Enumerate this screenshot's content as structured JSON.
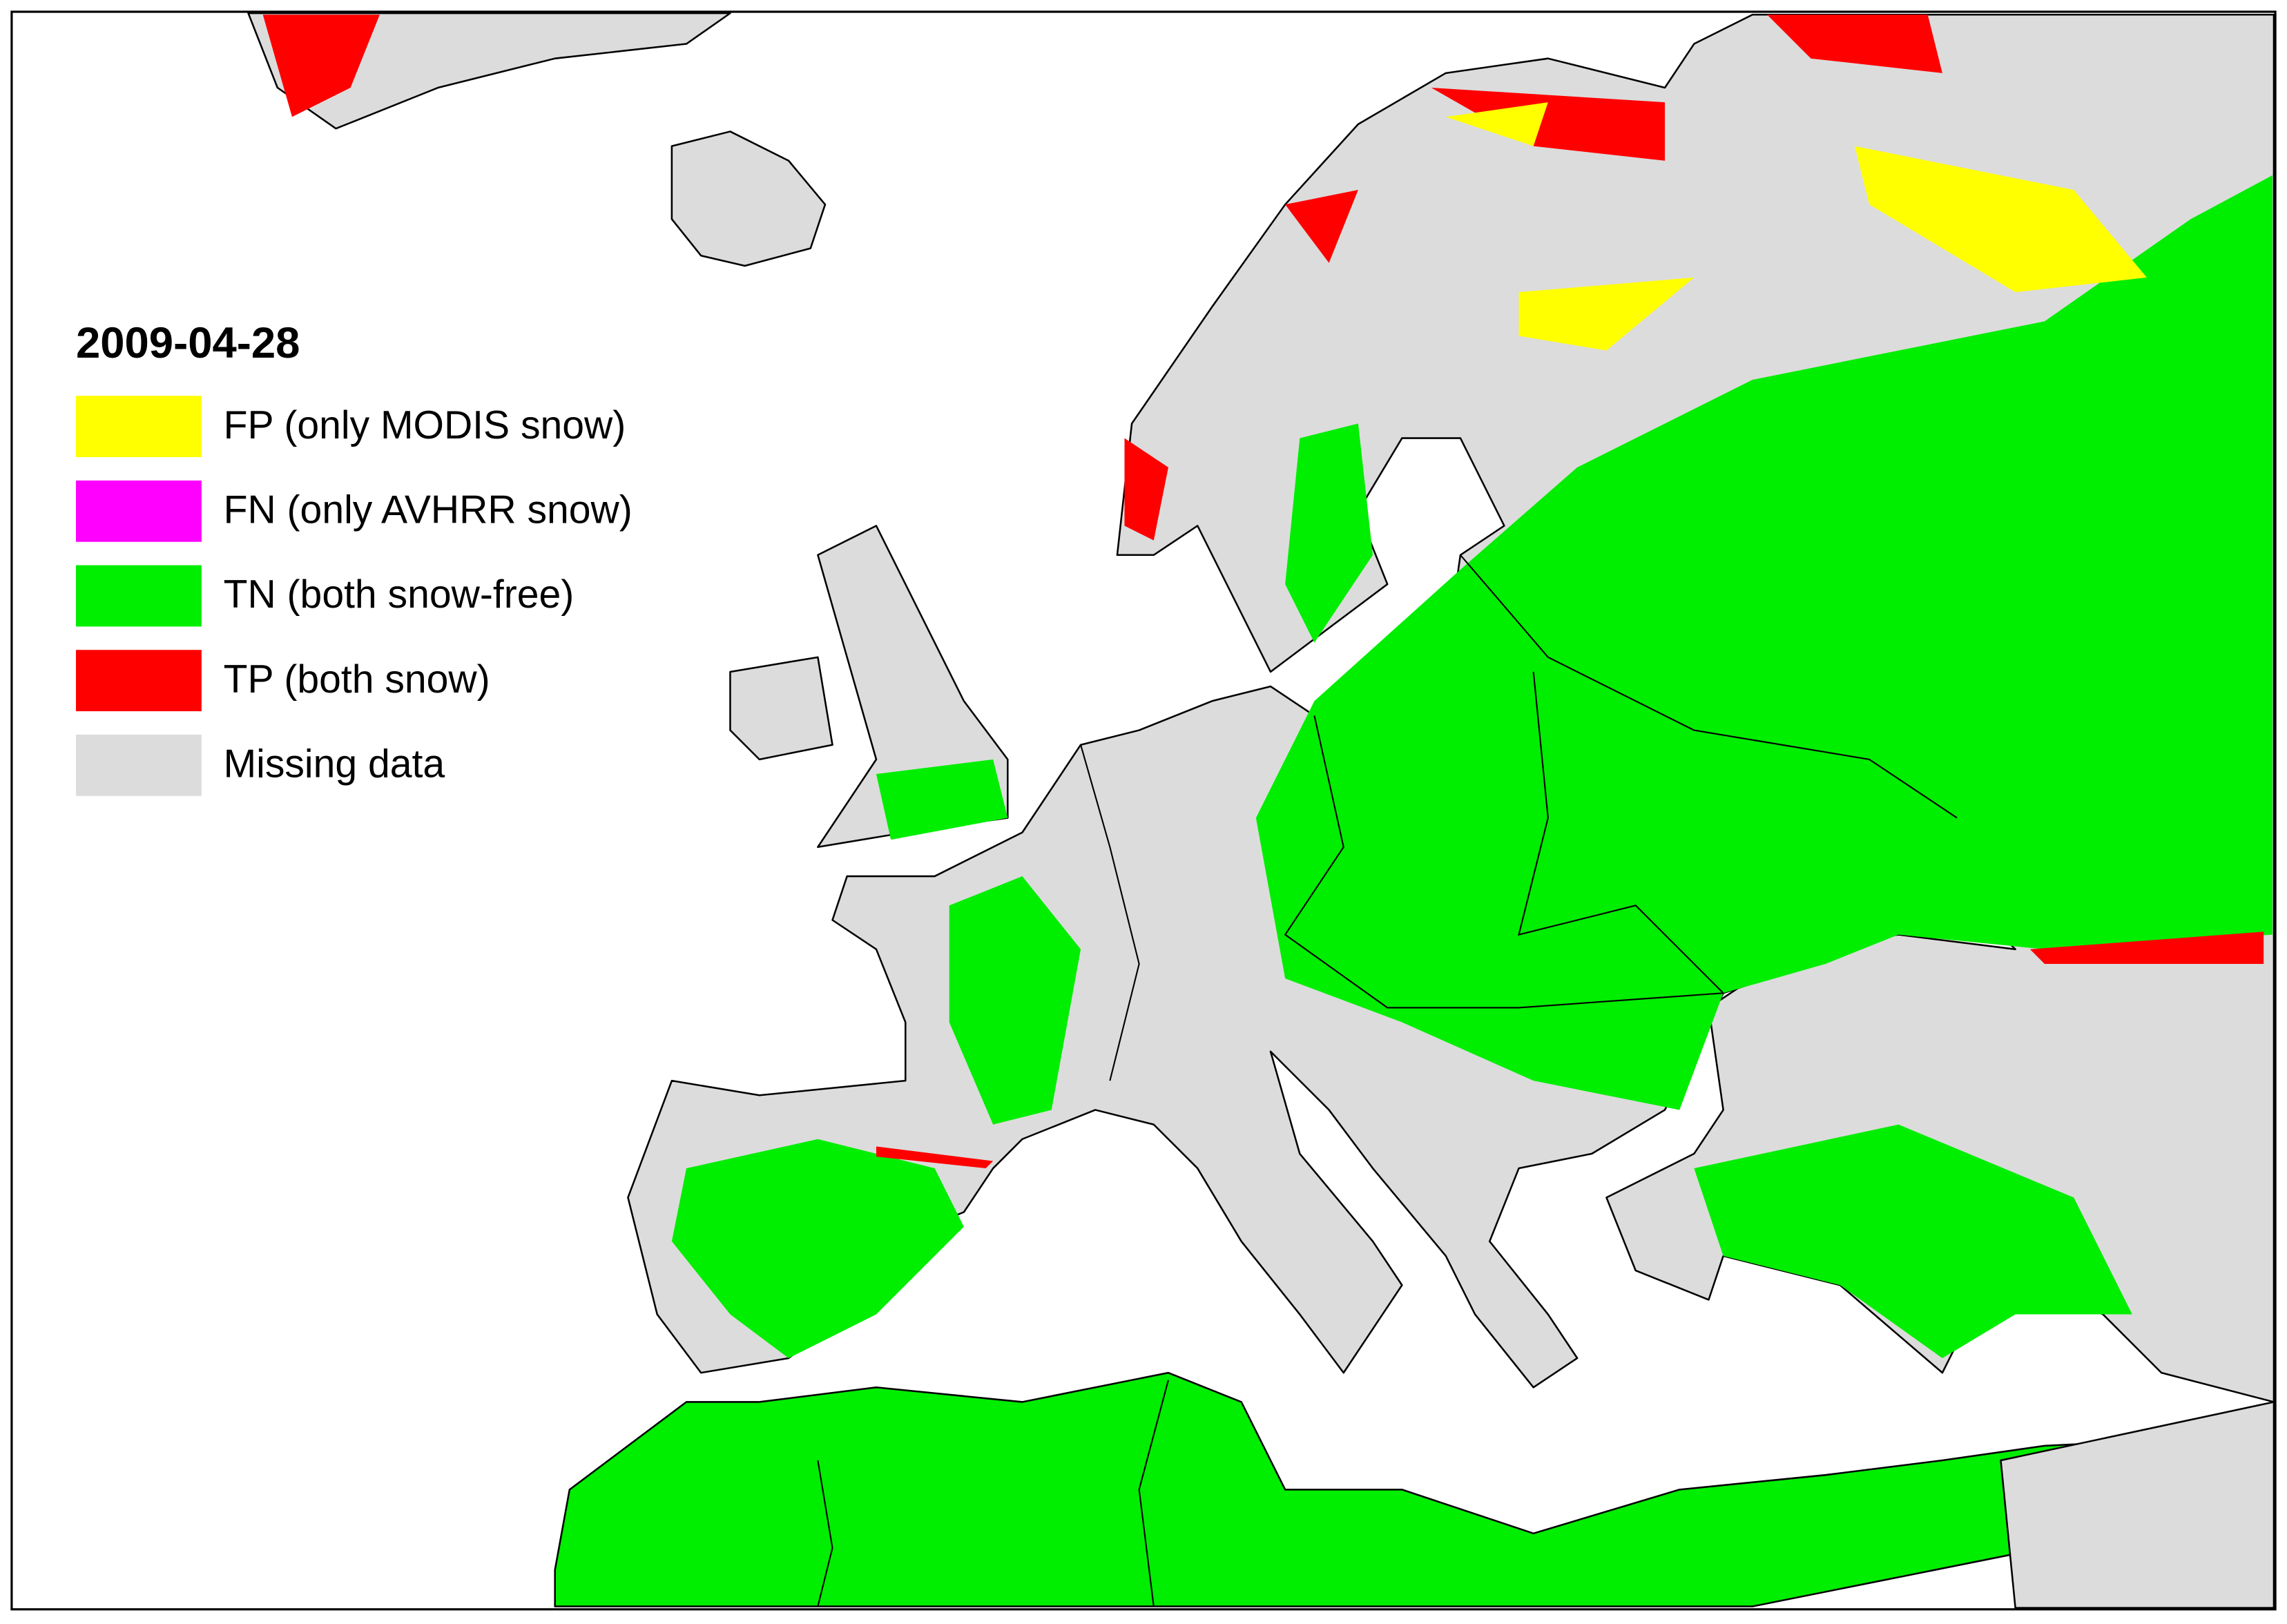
{
  "map": {
    "date": "2009-04-28",
    "legend": [
      {
        "label": "FP (only MODIS snow)",
        "color": "#ffff00"
      },
      {
        "label": "FN (only AVHRR snow)",
        "color": "#ff00ff"
      },
      {
        "label": "TN (both snow-free)",
        "color": "#00ee00"
      },
      {
        "label": "TP (both snow)",
        "color": "#ff0000"
      },
      {
        "label": "Missing data",
        "color": "#dcdcdc"
      }
    ]
  }
}
